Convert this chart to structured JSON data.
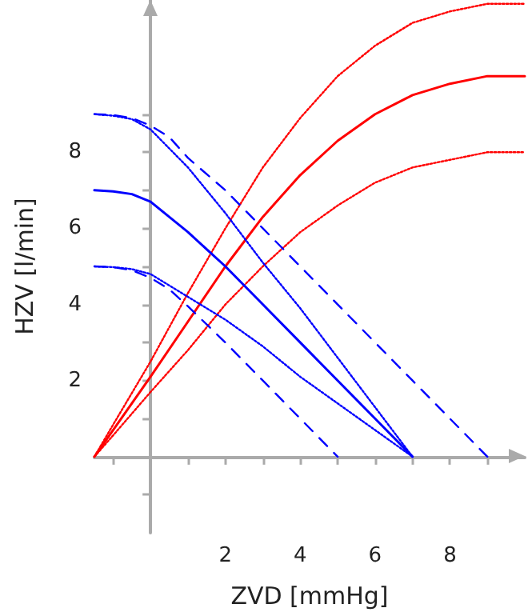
{
  "chart_data": {
    "type": "line",
    "xlabel": "ZVD [mmHg]",
    "ylabel": "HZV [l/min]",
    "xlim": [
      -1.5,
      10
    ],
    "ylim": [
      -2,
      12
    ],
    "xticks": [
      {
        "value": -1,
        "label": null
      },
      {
        "value": 1,
        "label": null
      },
      2,
      {
        "value": 3,
        "label": null
      },
      4,
      {
        "value": 5,
        "label": null
      },
      6,
      {
        "value": 7,
        "label": null
      },
      8,
      {
        "value": 9,
        "label": null
      }
    ],
    "yticks": [
      {
        "value": -1,
        "label": null
      },
      {
        "value": 1,
        "label": null
      },
      2,
      {
        "value": 3,
        "label": null
      },
      4,
      {
        "value": 5,
        "label": null
      },
      6,
      {
        "value": 7,
        "label": null
      },
      8,
      {
        "value": 9,
        "label": null
      }
    ],
    "grid": false,
    "marker": "none",
    "series": [
      {
        "color": "#ff0000",
        "line_style": "solid",
        "x": [
          -1.5,
          -1,
          0,
          1,
          2,
          3,
          4,
          5,
          6,
          7,
          8,
          9,
          10
        ],
        "values": [
          0,
          0.7,
          2.1,
          3.55,
          5.0,
          6.3,
          7.4,
          8.3,
          9.0,
          9.5,
          9.8,
          10.0,
          10.0
        ]
      },
      {
        "color": "#ff0000",
        "line_style": "dotted",
        "x": [
          -1.5,
          -1,
          0,
          1,
          2,
          3,
          4,
          5,
          6,
          7,
          8,
          9,
          10
        ],
        "values": [
          0,
          0.84,
          2.5,
          4.3,
          6.0,
          7.6,
          8.9,
          10.0,
          10.8,
          11.4,
          11.7,
          11.9,
          11.9
        ]
      },
      {
        "color": "#ff0000",
        "line_style": "dotted",
        "x": [
          -1.5,
          -1,
          0,
          1,
          2,
          3,
          4,
          5,
          6,
          7,
          8,
          9,
          10
        ],
        "values": [
          0,
          0.56,
          1.7,
          2.8,
          4.0,
          5.0,
          5.9,
          6.6,
          7.2,
          7.6,
          7.8,
          8.0,
          8.0
        ]
      },
      {
        "color": "#0000ff",
        "line_style": "solid",
        "x": [
          -1.5,
          -1,
          -0.5,
          0,
          0.5,
          1,
          2,
          3,
          4,
          5,
          6,
          7
        ],
        "values": [
          7,
          6.97,
          6.9,
          6.7,
          6.3,
          5.9,
          5.0,
          4.0,
          3.0,
          2.0,
          1.0,
          0
        ]
      },
      {
        "color": "#0000ff",
        "line_style": "dotted",
        "x": [
          -1.5,
          -1,
          -0.5,
          0,
          0.5,
          1,
          2,
          3,
          4,
          5,
          6,
          7
        ],
        "values": [
          9,
          8.96,
          8.87,
          8.6,
          8.1,
          7.6,
          6.4,
          5.1,
          3.9,
          2.6,
          1.3,
          0
        ]
      },
      {
        "color": "#0000ff",
        "line_style": "dotted",
        "x": [
          -1.5,
          -1,
          -0.5,
          0,
          0.5,
          1,
          2,
          3,
          4,
          5,
          6,
          7
        ],
        "values": [
          5,
          4.98,
          4.93,
          4.8,
          4.5,
          4.2,
          3.6,
          2.9,
          2.1,
          1.4,
          0.7,
          0
        ]
      },
      {
        "color": "#0000ff",
        "line_style": "dashed",
        "x": [
          -1.5,
          -1,
          -0.5,
          0,
          0.5,
          1,
          2,
          3,
          4,
          5,
          6,
          7,
          8,
          9
        ],
        "values": [
          9,
          8.98,
          8.9,
          8.7,
          8.4,
          7.85,
          7.0,
          6.0,
          5.0,
          4.0,
          3.0,
          2.0,
          1.0,
          0
        ]
      },
      {
        "color": "#0000ff",
        "line_style": "dashed",
        "x": [
          -1.5,
          -1,
          -0.5,
          0,
          0.5,
          1,
          2,
          3,
          4,
          5
        ],
        "values": [
          5,
          4.98,
          4.9,
          4.7,
          4.4,
          3.95,
          3.0,
          2.0,
          1.0,
          0
        ]
      }
    ]
  }
}
